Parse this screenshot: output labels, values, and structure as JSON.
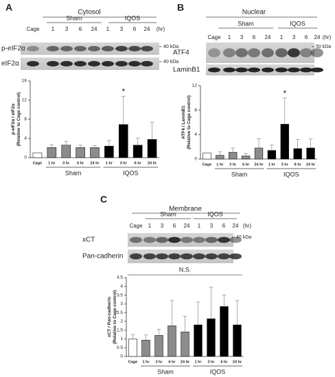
{
  "chart_data": [
    {
      "type": "bar",
      "panel": "A",
      "title": "Cytosol",
      "blot_groups": [
        "Sham",
        "IQOS"
      ],
      "lanes": [
        "Cage",
        "1",
        "3",
        "6",
        "24",
        "1",
        "3",
        "6",
        "24"
      ],
      "lane_unit": "(hr)",
      "blot_rows": [
        "p-eIF2α",
        "eIF2α"
      ],
      "markers": [
        "40 kDa",
        "40 kDa"
      ],
      "ylabel": [
        "p-eIF2α / eIF2α",
        "(Relative to Cage control)"
      ],
      "categories": [
        "Cage",
        "1 hr",
        "3 hr",
        "6 hr",
        "24 hr",
        "1 hr",
        "3 hr",
        "6 hr",
        "24 hr"
      ],
      "bar_groups": [
        "Sham",
        "IQOS"
      ],
      "values": [
        1.0,
        2.1,
        2.6,
        2.1,
        2.1,
        2.4,
        6.9,
        2.6,
        3.8
      ],
      "errors": [
        null,
        0.6,
        0.8,
        0.5,
        0.4,
        1.2,
        5.9,
        1.5,
        3.6
      ],
      "colors": [
        "#ffffff",
        "#8c8c8c",
        "#8c8c8c",
        "#8c8c8c",
        "#8c8c8c",
        "#000000",
        "#000000",
        "#000000",
        "#000000"
      ],
      "ylim": [
        0,
        16
      ],
      "yticks": [
        0,
        4,
        8,
        12,
        16
      ],
      "annotation": "*"
    },
    {
      "type": "bar",
      "panel": "B",
      "title": "Nuclear",
      "blot_groups": [
        "Sham",
        "IQOS"
      ],
      "lanes": [
        "Cage",
        "1",
        "3",
        "6",
        "24",
        "1",
        "3",
        "6",
        "24"
      ],
      "lane_unit": "(hr)",
      "blot_rows": [
        "ATF4",
        "LaminB1"
      ],
      "markers": [
        "50 kDa"
      ],
      "ylabel": [
        "ATF4 / LaminB1",
        "(Relative to Cage control)"
      ],
      "categories": [
        "Cage",
        "1 hr",
        "3 hr",
        "6 hr",
        "24 hr",
        "1 hr",
        "3 hr",
        "6 hr",
        "24 hr"
      ],
      "bar_groups": [
        "Sham",
        "IQOS"
      ],
      "values": [
        1.0,
        0.6,
        1.1,
        0.5,
        1.8,
        1.4,
        5.7,
        1.7,
        1.8
      ],
      "errors": [
        null,
        0.6,
        0.7,
        0.4,
        1.5,
        0.9,
        4.3,
        1.5,
        1.5
      ],
      "colors": [
        "#ffffff",
        "#8c8c8c",
        "#8c8c8c",
        "#8c8c8c",
        "#8c8c8c",
        "#000000",
        "#000000",
        "#000000",
        "#000000"
      ],
      "ylim": [
        0,
        12
      ],
      "yticks": [
        0,
        4,
        8,
        12
      ],
      "annotation": "*"
    },
    {
      "type": "bar",
      "panel": "C",
      "title": "Membrane",
      "blot_groups": [
        "Sham",
        "IQOS"
      ],
      "lanes": [
        "Cage",
        "1",
        "3",
        "6",
        "24",
        "1",
        "3",
        "6",
        "24"
      ],
      "lane_unit": "(hr)",
      "blot_rows": [
        "xCT",
        "Pan-cadherin"
      ],
      "markers": [
        "40 kDa"
      ],
      "ylabel": [
        "xCT / Pan-cadherin",
        "(Relative to Cage control)"
      ],
      "categories": [
        "Cage",
        "1 hr",
        "3 hr",
        "6 hr",
        "24 hr",
        "1 hr",
        "3 hr",
        "6 hr",
        "24 hr"
      ],
      "bar_groups": [
        "Sham",
        "IQOS"
      ],
      "values": [
        1.0,
        0.93,
        1.2,
        1.75,
        1.4,
        1.8,
        2.15,
        2.85,
        1.8
      ],
      "errors": [
        0.25,
        0.3,
        0.35,
        1.45,
        0.9,
        1.3,
        1.8,
        0.65,
        1.4
      ],
      "colors": [
        "#ffffff",
        "#8c8c8c",
        "#8c8c8c",
        "#8c8c8c",
        "#8c8c8c",
        "#000000",
        "#000000",
        "#000000",
        "#000000"
      ],
      "ylim": [
        0,
        4.5
      ],
      "yticks": [
        0,
        0.5,
        1,
        1.5,
        2,
        2.5,
        3,
        3.5,
        4,
        4.5
      ],
      "annotation": "N.S."
    }
  ]
}
